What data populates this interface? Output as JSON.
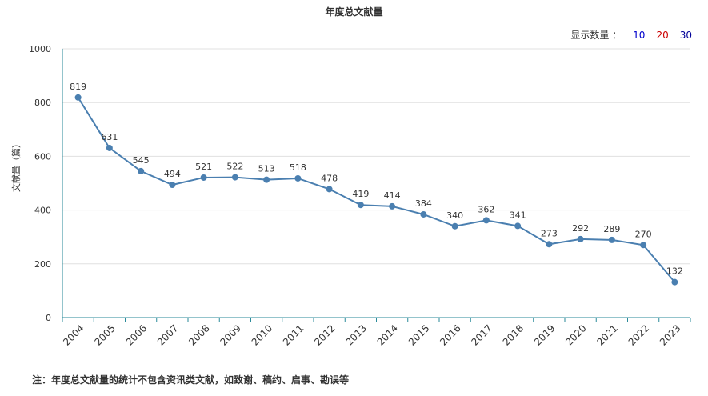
{
  "title": "年度总文献量",
  "display_count": {
    "label": "显示数量 ：",
    "options": [
      "10",
      "20",
      "30"
    ]
  },
  "footnote": "注：年度总文献量的统计不包含资讯类文献，如致谢、稿约、启事、勘误等",
  "chart_data": {
    "type": "line",
    "title": "年度总文献量",
    "xlabel": "",
    "ylabel": "文献量（篇）",
    "ylim": [
      0,
      1000
    ],
    "yticks": [
      0,
      200,
      400,
      600,
      800,
      1000
    ],
    "grid": true,
    "categories": [
      "2004",
      "2005",
      "2006",
      "2007",
      "2008",
      "2009",
      "2010",
      "2011",
      "2012",
      "2013",
      "2014",
      "2015",
      "2016",
      "2017",
      "2018",
      "2019",
      "2020",
      "2021",
      "2022",
      "2023"
    ],
    "values": [
      819,
      631,
      545,
      494,
      521,
      522,
      513,
      518,
      478,
      419,
      414,
      384,
      340,
      362,
      341,
      273,
      292,
      289,
      270,
      132
    ],
    "line_color": "#4a7fb0"
  }
}
